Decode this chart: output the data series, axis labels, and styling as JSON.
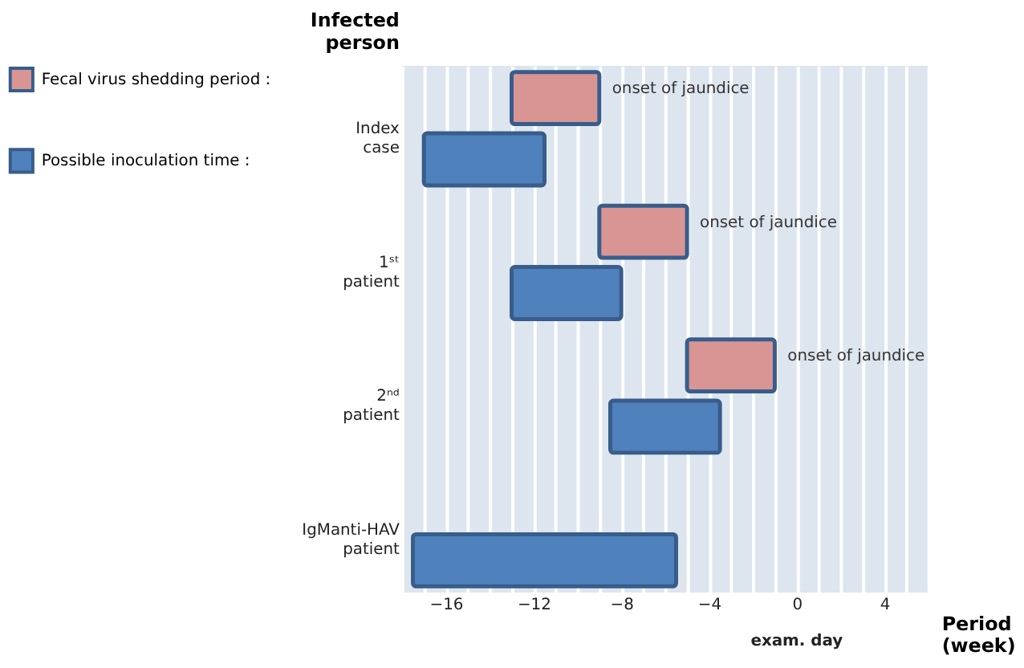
{
  "chart_data": {
    "type": "bar",
    "orientation": "horizontal",
    "categories": [
      "Index case",
      "1ˢᵗ patient",
      "2ⁿᵈ patient",
      "IgManti-HAV patient"
    ],
    "series": [
      {
        "name": "Fecal virus shedding period :",
        "color": "#d99594",
        "base": [
          -13,
          -9,
          -5,
          null
        ],
        "values": [
          4,
          4,
          4,
          null
        ]
      },
      {
        "name": "Possible inoculation time :",
        "color": "#4f81bd",
        "base": [
          -17,
          -13,
          -8.5,
          -17.5
        ],
        "values": [
          5.5,
          5,
          5,
          12
        ]
      }
    ],
    "xlabel": "Period (week)",
    "ylabel": "Infected person",
    "xlim": [
      -18,
      6
    ],
    "xticks": [
      {
        "value": -18,
        "label": null
      },
      {
        "value": -17,
        "label": null
      },
      -16,
      {
        "value": -15,
        "label": null
      },
      {
        "value": -14,
        "label": null
      },
      {
        "value": -13,
        "label": null
      },
      -12,
      {
        "value": -11,
        "label": null
      },
      {
        "value": -10,
        "label": null
      },
      {
        "value": -9,
        "label": null
      },
      -8,
      {
        "value": -7,
        "label": null
      },
      {
        "value": -6,
        "label": null
      },
      {
        "value": -5,
        "label": null
      },
      -4,
      {
        "value": -3,
        "label": null
      },
      {
        "value": -2,
        "label": null
      },
      {
        "value": -1,
        "label": null
      },
      0,
      {
        "value": 1,
        "label": null
      },
      {
        "value": 2,
        "label": null
      },
      {
        "value": 3,
        "label": null
      },
      4,
      {
        "value": 5,
        "label": null
      },
      {
        "value": 6,
        "label": null
      }
    ],
    "grid": "x",
    "legend": "left",
    "annotations": [
      "onset of jaundice",
      "onset of jaundice",
      "onset of jaundice",
      "exam. day"
    ]
  }
}
